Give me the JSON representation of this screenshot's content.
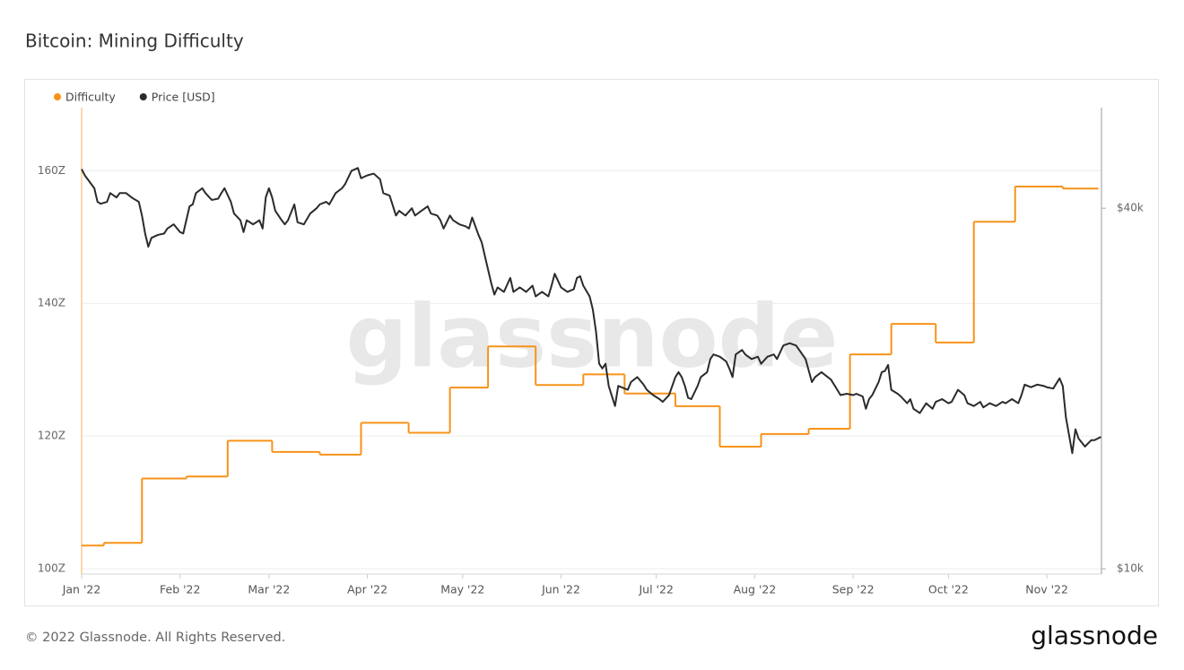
{
  "chart_data": {
    "type": "line",
    "title": "Bitcoin: Mining Difficulty",
    "watermark": "glassnode",
    "xlim": [
      0,
      321.2
    ],
    "xticks": [
      {
        "value": 0,
        "label": "Jan '22"
      },
      {
        "value": 31,
        "label": "Feb '22"
      },
      {
        "value": 59,
        "label": "Mar '22"
      },
      {
        "value": 90,
        "label": "Apr '22"
      },
      {
        "value": 120,
        "label": "May '22"
      },
      {
        "value": 151,
        "label": "Jun '22"
      },
      {
        "value": 181,
        "label": "Jul '22"
      },
      {
        "value": 212,
        "label": "Aug '22"
      },
      {
        "value": 243,
        "label": "Sep '22"
      },
      {
        "value": 273,
        "label": "Oct '22"
      },
      {
        "value": 304,
        "label": "Nov '22"
      }
    ],
    "ylim": [
      99.2,
      169.5
    ],
    "yticks": [
      {
        "value": 100,
        "label": "100Z"
      },
      {
        "value": 120,
        "label": "120Z"
      },
      {
        "value": 140,
        "label": "140Z"
      },
      {
        "value": 160,
        "label": "160Z"
      }
    ],
    "y2lim": [
      9800,
      58900
    ],
    "y2log": true,
    "y2ticks": [
      {
        "value": 10000,
        "label": "$10k"
      },
      {
        "value": 40000,
        "label": "$40k"
      }
    ],
    "grid": true,
    "series": [
      {
        "name": "Difficulty",
        "color": "#f7931a",
        "step": "post",
        "x": [
          0,
          7,
          19,
          33,
          46,
          60,
          75,
          88,
          103,
          116,
          128,
          143,
          158,
          171,
          187,
          201,
          214,
          229,
          242,
          255,
          269,
          281,
          294,
          309,
          320
        ],
        "values": [
          103.5,
          103.9,
          113.6,
          113.9,
          119.3,
          117.6,
          117.2,
          122.0,
          120.5,
          127.3,
          133.5,
          127.7,
          129.3,
          126.4,
          124.5,
          118.4,
          120.3,
          121.1,
          132.3,
          136.9,
          134.1,
          152.3,
          157.6,
          157.3,
          157.3
        ]
      },
      {
        "name": "Price [USD]",
        "color": "#2b2b2b",
        "axis": "y2",
        "x": [
          0,
          1,
          4,
          5,
          6,
          8,
          9,
          11,
          12,
          14,
          16,
          18,
          19,
          20,
          21,
          22,
          24,
          26,
          27,
          29,
          31,
          32,
          34,
          35,
          36,
          38,
          39,
          41,
          43,
          44,
          45,
          47,
          48,
          50,
          51,
          52,
          54,
          56,
          57,
          58,
          59,
          60,
          61,
          63,
          64,
          65,
          67,
          68,
          70,
          72,
          74,
          75,
          77,
          78,
          80,
          82,
          83,
          85,
          87,
          88,
          90,
          92,
          94,
          95,
          97,
          99,
          100,
          102,
          104,
          105,
          107,
          109,
          110,
          112,
          113,
          114,
          116,
          117,
          119,
          121,
          122,
          123,
          125,
          126,
          127,
          129,
          130,
          131,
          133,
          135,
          136,
          138,
          140,
          142,
          143,
          145,
          147,
          148,
          149,
          151,
          153,
          155,
          156,
          157,
          158,
          160,
          161,
          162,
          163,
          164,
          165,
          166,
          168,
          169,
          170,
          172,
          173,
          175,
          177,
          178,
          180,
          182,
          183,
          185,
          187,
          188,
          189,
          190,
          191,
          192,
          194,
          195,
          197,
          198,
          199,
          201,
          203,
          204,
          205,
          206,
          208,
          209,
          211,
          213,
          214,
          216,
          218,
          219,
          221,
          223,
          225,
          226,
          228,
          230,
          231,
          233,
          235,
          236,
          238,
          239,
          241,
          243,
          244,
          246,
          247,
          248,
          249,
          251,
          252,
          253,
          254,
          255,
          257,
          258,
          260,
          261,
          262,
          264,
          266,
          268,
          269,
          271,
          273,
          274,
          276,
          278,
          279,
          281,
          283,
          284,
          286,
          288,
          290,
          291,
          293,
          295,
          296,
          297,
          299,
          301,
          303,
          304,
          306,
          308,
          309,
          310,
          312,
          313,
          314,
          316,
          318,
          319,
          321
        ],
        "values": [
          46500,
          45400,
          43200,
          41000,
          40700,
          41000,
          42400,
          41700,
          42400,
          42400,
          41600,
          41000,
          38900,
          36300,
          34500,
          35700,
          36100,
          36300,
          37000,
          37600,
          36500,
          36300,
          40300,
          40600,
          42400,
          43200,
          42400,
          41300,
          41500,
          42400,
          43200,
          41000,
          39200,
          38200,
          36500,
          38200,
          37600,
          38200,
          37000,
          41700,
          43200,
          41700,
          39600,
          38200,
          37600,
          38200,
          40600,
          37900,
          37600,
          39200,
          40000,
          40600,
          41000,
          40600,
          42400,
          43200,
          43900,
          46200,
          46700,
          44900,
          45400,
          45700,
          44700,
          42400,
          42000,
          38900,
          39600,
          38900,
          40000,
          38900,
          39600,
          40300,
          39200,
          38900,
          38200,
          37000,
          38900,
          38200,
          37600,
          37300,
          37000,
          38600,
          36100,
          35100,
          33300,
          30000,
          28700,
          29500,
          29000,
          30600,
          29000,
          29500,
          29000,
          29700,
          28500,
          29000,
          28500,
          29700,
          31100,
          29500,
          29000,
          29300,
          30600,
          30800,
          29700,
          28500,
          27100,
          24900,
          22000,
          21600,
          22000,
          20200,
          18700,
          20200,
          20100,
          19900,
          20500,
          20900,
          20300,
          19900,
          19500,
          19200,
          19000,
          19500,
          20900,
          21300,
          20900,
          20200,
          19300,
          19200,
          20200,
          20900,
          21300,
          22400,
          22800,
          22600,
          22200,
          21600,
          20900,
          22800,
          23200,
          22800,
          22400,
          22600,
          22000,
          22600,
          22800,
          22400,
          23600,
          23800,
          23600,
          23200,
          22400,
          20500,
          20900,
          21300,
          20900,
          20700,
          19900,
          19500,
          19600,
          19500,
          19600,
          19400,
          18500,
          19200,
          19500,
          20500,
          21300,
          21400,
          21900,
          19900,
          19600,
          19400,
          18900,
          19200,
          18500,
          18200,
          18900,
          18500,
          19000,
          19200,
          18900,
          19000,
          19900,
          19500,
          18900,
          18700,
          19000,
          18600,
          18900,
          18700,
          19000,
          18900,
          19200,
          18900,
          19500,
          20300,
          20100,
          20300,
          20200,
          20100,
          20000,
          20800,
          20200,
          17900,
          15600,
          17100,
          16500,
          16000,
          16400,
          16400,
          16600
        ]
      }
    ]
  },
  "footer": {
    "copyright": "© 2022 Glassnode. All Rights Reserved.",
    "logo": "glassnode"
  }
}
